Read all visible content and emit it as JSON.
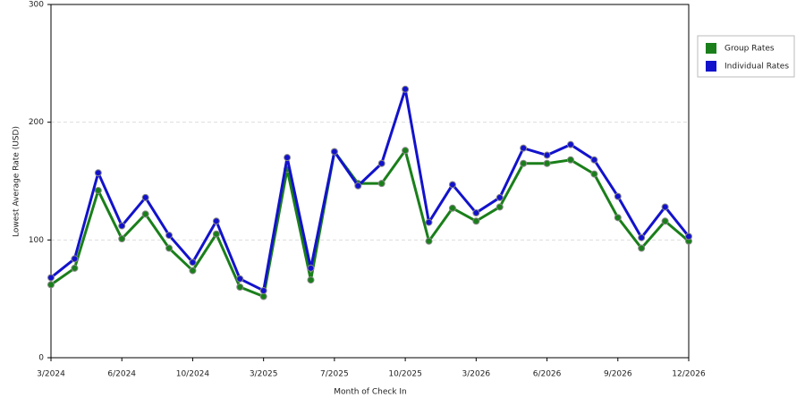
{
  "chart_data": {
    "type": "line",
    "x_label": "Month of Check In",
    "y_label": "Lowest Average Rate (USD)",
    "categories": [
      "3/2024",
      null,
      null,
      "6/2024",
      null,
      null,
      "10/2024",
      null,
      null,
      "3/2025",
      null,
      null,
      "7/2025",
      null,
      null,
      "10/2025",
      null,
      null,
      "3/2026",
      null,
      null,
      "6/2026",
      null,
      null,
      "9/2026",
      null,
      null,
      "12/2026"
    ],
    "series": [
      {
        "name": "Group Rates",
        "color": "#1a7f1a",
        "values": [
          62,
          76,
          142,
          101,
          122,
          93,
          74,
          105,
          60,
          52,
          160,
          66,
          175,
          148,
          148,
          176,
          99,
          127,
          116,
          128,
          165,
          165,
          168,
          156,
          119,
          93,
          116,
          99
        ]
      },
      {
        "name": "Individual Rates",
        "color": "#1212cc",
        "values": [
          68,
          84,
          157,
          112,
          136,
          104,
          81,
          116,
          67,
          57,
          170,
          76,
          175,
          146,
          165,
          228,
          115,
          147,
          123,
          136,
          178,
          172,
          181,
          168,
          137,
          102,
          128,
          103
        ]
      }
    ],
    "ylim": [
      0,
      300
    ],
    "yticks": [
      0,
      100,
      200,
      300
    ],
    "grid": true,
    "legend": "right"
  }
}
